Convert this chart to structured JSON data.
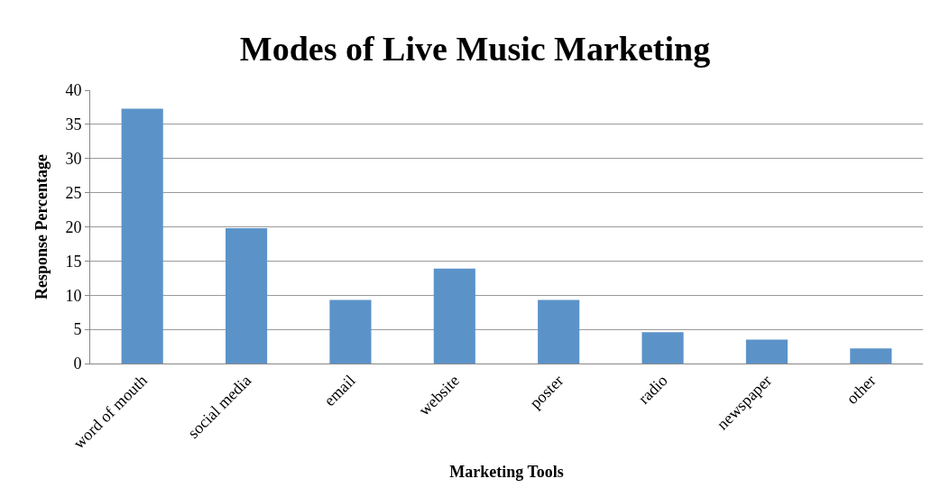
{
  "chart_data": {
    "type": "bar",
    "title": "Modes of Live Music Marketing",
    "xlabel": "Marketing Tools",
    "ylabel": "Response Percentage",
    "categories": [
      "word of mouth",
      "social media",
      "email",
      "website",
      "poster",
      "radio",
      "newspaper",
      "other"
    ],
    "values": [
      37.3,
      19.8,
      9.3,
      13.9,
      9.3,
      4.6,
      3.5,
      2.2
    ],
    "color": "#5b93c9",
    "ylim": [
      0,
      40
    ],
    "yticks": [
      0,
      5,
      10,
      15,
      20,
      25,
      30,
      35,
      40
    ],
    "grid": "y"
  }
}
